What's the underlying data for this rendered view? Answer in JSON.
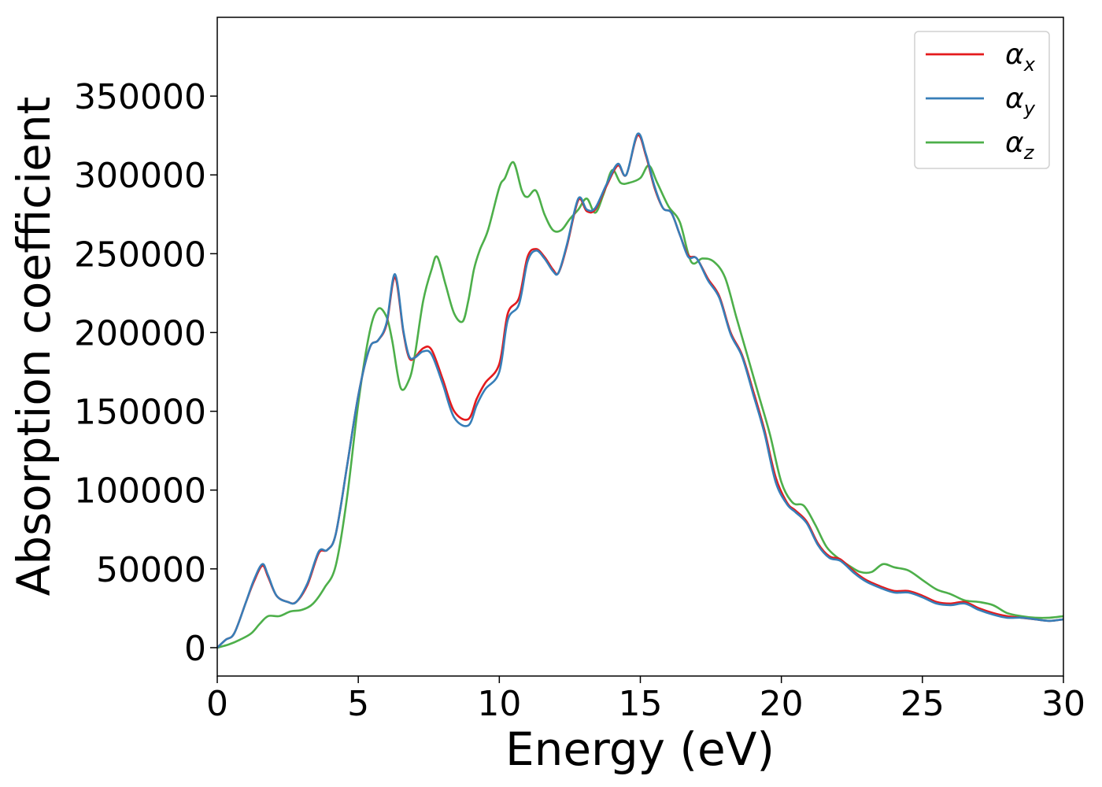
{
  "chart_data": {
    "type": "line",
    "xlabel": "Energy (eV)",
    "ylabel": "Absorption coefficient",
    "xlim": [
      0,
      30
    ],
    "ylim": [
      -18000,
      400000
    ],
    "xticks": [
      "0",
      "5",
      "10",
      "15",
      "20",
      "25",
      "30"
    ],
    "yticks": [
      "0",
      "50000",
      "100000",
      "150000",
      "200000",
      "250000",
      "300000",
      "350000"
    ],
    "grid": false,
    "legend_position": "top-right",
    "series": [
      {
        "name": "α_x",
        "label_main": "α",
        "label_sub": "x",
        "color": "#e41a1c",
        "x": [
          0,
          0.3,
          0.6,
          1.0,
          1.3,
          1.6,
          1.8,
          2.1,
          2.5,
          2.8,
          3.2,
          3.6,
          3.9,
          4.2,
          4.6,
          5.0,
          5.4,
          5.7,
          6.0,
          6.3,
          6.6,
          6.8,
          7.0,
          7.3,
          7.6,
          8.0,
          8.4,
          8.9,
          9.2,
          9.5,
          10.0,
          10.3,
          10.7,
          11.0,
          11.3,
          11.6,
          11.9,
          12.1,
          12.4,
          12.8,
          13.1,
          13.4,
          13.8,
          14.2,
          14.5,
          14.9,
          15.2,
          15.5,
          15.8,
          16.1,
          16.4,
          16.7,
          17.0,
          17.4,
          17.8,
          18.2,
          18.6,
          19.0,
          19.4,
          19.8,
          20.2,
          20.5,
          20.9,
          21.3,
          21.7,
          22.1,
          22.6,
          23.0,
          23.5,
          24.0,
          24.5,
          25.0,
          25.5,
          26.0,
          26.5,
          27.0,
          27.5,
          28.0,
          28.5,
          29.0,
          29.5,
          30.0
        ],
        "y": [
          0,
          5000,
          9000,
          28000,
          42000,
          52000,
          45000,
          33000,
          29000,
          29000,
          40000,
          60000,
          62000,
          72000,
          115000,
          160000,
          190000,
          195000,
          205000,
          235000,
          200000,
          184000,
          184000,
          190000,
          189000,
          170000,
          150000,
          145000,
          158000,
          168000,
          180000,
          212000,
          222000,
          248000,
          253000,
          248000,
          240000,
          238000,
          255000,
          284000,
          277000,
          278000,
          293000,
          306000,
          300000,
          325000,
          312000,
          292000,
          279000,
          276000,
          262000,
          249000,
          247000,
          234000,
          223000,
          200000,
          186000,
          163000,
          138000,
          108000,
          92000,
          87000,
          80000,
          66000,
          58000,
          56000,
          48000,
          43000,
          39000,
          36000,
          36000,
          33000,
          29000,
          28000,
          29000,
          25000,
          22000,
          20000,
          19000,
          18000,
          17000,
          18000
        ]
      },
      {
        "name": "α_y",
        "label_main": "α",
        "label_sub": "y",
        "color": "#377eb8",
        "x": [
          0,
          0.3,
          0.6,
          1.0,
          1.3,
          1.6,
          1.8,
          2.1,
          2.5,
          2.8,
          3.2,
          3.6,
          3.9,
          4.2,
          4.6,
          5.0,
          5.4,
          5.7,
          6.0,
          6.3,
          6.6,
          6.8,
          7.0,
          7.3,
          7.6,
          8.0,
          8.4,
          8.9,
          9.2,
          9.5,
          10.0,
          10.3,
          10.7,
          11.0,
          11.3,
          11.6,
          11.9,
          12.1,
          12.4,
          12.8,
          13.1,
          13.4,
          13.8,
          14.2,
          14.5,
          14.9,
          15.2,
          15.5,
          15.8,
          16.1,
          16.4,
          16.7,
          17.0,
          17.4,
          17.8,
          18.2,
          18.6,
          19.0,
          19.4,
          19.8,
          20.2,
          20.5,
          20.9,
          21.3,
          21.7,
          22.1,
          22.6,
          23.0,
          23.5,
          24.0,
          24.5,
          25.0,
          25.5,
          26.0,
          26.5,
          27.0,
          27.5,
          28.0,
          28.5,
          29.0,
          29.5,
          30.0
        ],
        "y": [
          0,
          5000,
          9000,
          28000,
          43000,
          53000,
          46000,
          33000,
          29000,
          29000,
          41000,
          61000,
          62000,
          72000,
          115000,
          160000,
          190000,
          195000,
          206000,
          237000,
          201000,
          185000,
          184000,
          188000,
          186000,
          167000,
          146000,
          141000,
          154000,
          164000,
          175000,
          208000,
          218000,
          245000,
          252000,
          247000,
          239000,
          238000,
          256000,
          285000,
          278000,
          279000,
          294000,
          307000,
          300000,
          326000,
          313000,
          293000,
          279000,
          276000,
          262000,
          248000,
          247000,
          233000,
          222000,
          199000,
          185000,
          161000,
          136000,
          105000,
          91000,
          86000,
          79000,
          65000,
          57000,
          55000,
          47000,
          42000,
          38000,
          35000,
          35000,
          32000,
          28000,
          27000,
          28000,
          24000,
          21000,
          19000,
          19000,
          18000,
          17000,
          18000
        ]
      },
      {
        "name": "α_z",
        "label_main": "α",
        "label_sub": "z",
        "color": "#4daf4a",
        "x": [
          0,
          0.4,
          0.8,
          1.2,
          1.5,
          1.8,
          2.2,
          2.6,
          3.0,
          3.4,
          3.8,
          4.2,
          4.6,
          5.0,
          5.4,
          5.7,
          6.0,
          6.2,
          6.5,
          6.8,
          7.0,
          7.3,
          7.6,
          7.8,
          8.1,
          8.4,
          8.7,
          8.9,
          9.1,
          9.3,
          9.6,
          10.0,
          10.2,
          10.5,
          10.8,
          11.0,
          11.3,
          11.6,
          11.9,
          12.2,
          12.5,
          12.8,
          13.1,
          13.4,
          13.7,
          14.0,
          14.3,
          14.6,
          15.0,
          15.3,
          15.6,
          16.0,
          16.4,
          16.8,
          17.2,
          17.6,
          18.0,
          18.4,
          18.8,
          19.2,
          19.6,
          20.0,
          20.4,
          20.8,
          21.2,
          21.6,
          22.0,
          22.4,
          22.8,
          23.2,
          23.6,
          24.0,
          24.5,
          25.0,
          25.5,
          26.0,
          26.5,
          27.0,
          27.5,
          28.0,
          28.5,
          29.0,
          29.5,
          30.0
        ],
        "y": [
          0,
          2000,
          5000,
          9000,
          15000,
          20000,
          20000,
          23000,
          24000,
          28000,
          38000,
          52000,
          95000,
          155000,
          200000,
          215000,
          210000,
          195000,
          165000,
          170000,
          185000,
          220000,
          240000,
          248000,
          230000,
          212000,
          207000,
          220000,
          240000,
          252000,
          265000,
          292000,
          298000,
          308000,
          290000,
          286000,
          290000,
          275000,
          265000,
          265000,
          272000,
          278000,
          285000,
          276000,
          288000,
          303000,
          295000,
          295000,
          298000,
          306000,
          295000,
          280000,
          270000,
          245000,
          247000,
          245000,
          235000,
          210000,
          185000,
          160000,
          135000,
          105000,
          92000,
          90000,
          78000,
          64000,
          57000,
          52000,
          48000,
          48000,
          53000,
          51000,
          49000,
          43000,
          37000,
          34000,
          30000,
          29000,
          27000,
          22000,
          20000,
          19000,
          19000,
          20000
        ]
      }
    ]
  }
}
